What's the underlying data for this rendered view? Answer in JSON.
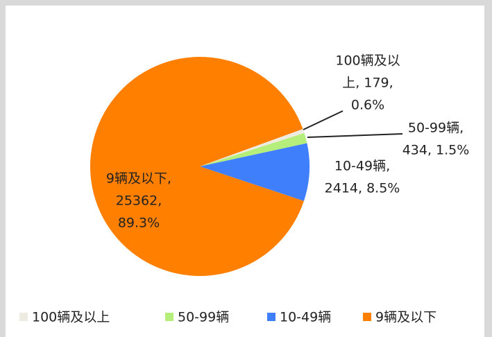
{
  "chart_data": {
    "type": "pie",
    "categories": [
      "100辆及以上",
      "50-99辆",
      "10-49辆",
      "9辆及以下"
    ],
    "values": [
      179,
      434,
      2414,
      25362
    ],
    "value_labels": [
      [
        "100辆及以",
        "上, 179,",
        "0.6%"
      ],
      [
        "50-99辆,",
        "434, 1.5%"
      ],
      [
        "10-49辆,",
        "2414, 8.5%"
      ],
      [
        "9辆及以下,",
        "25362,",
        "89.3%"
      ]
    ],
    "colors": [
      "#eeece1",
      "#b5ee7a",
      "#3f7ffb",
      "#ff7f00"
    ],
    "legend": "bottom"
  }
}
